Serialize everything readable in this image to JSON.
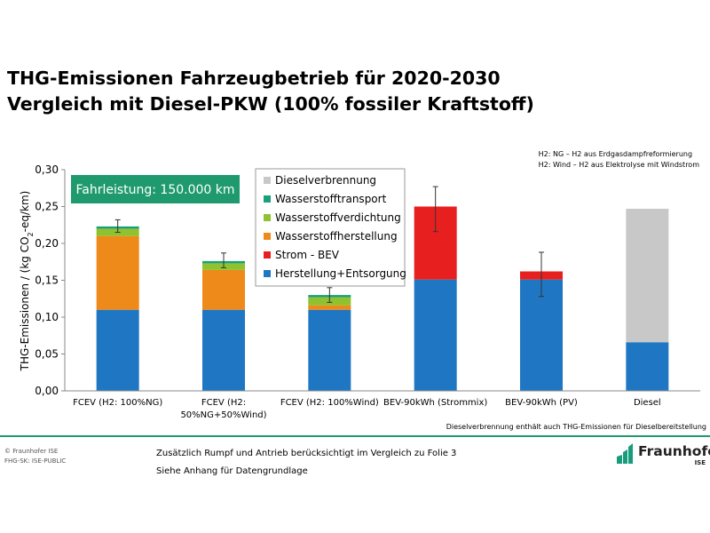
{
  "title": {
    "line1": "THG-Emissionen Fahrzeugbetrieb für 2020-2030",
    "line2": "Vergleich mit Diesel-PKW (100% fossiler Kraftstoff)"
  },
  "notes": {
    "ng": "H2: NG – H2 aus Erdgasdampfreformierung",
    "wind": "H2: Wind – H2 aus Elektrolyse mit Windstrom",
    "diesel": "Dieselverbrennung enthält auch THG-Emissionen für Dieselbereitstellung"
  },
  "badge": "Fahrleistung: 150.000 km",
  "footer": {
    "copyright": "© Fraunhofer ISE",
    "classification": "FHG-SK: ISE-PUBLIC",
    "line1": "Zusätzlich Rumpf und Antrieb berücksichtigt im Vergleich zu Folie 3",
    "line2": "Siehe Anhang für Datengrundlage",
    "logo_name": "Fraunhofer",
    "logo_sub": "ISE"
  },
  "colors": {
    "herstellung": "#1f77c4",
    "strom": "#e81f1f",
    "h2herstellung": "#ee8a1a",
    "h2verdichtung": "#8fc22e",
    "h2transport": "#17a07a",
    "diesel": "#c8c8c8",
    "badge": "#1f9a6e"
  },
  "chart_data": {
    "type": "bar",
    "stacked": true,
    "ylabel": "THG-Emissionen / (kg CO2-eq/km)",
    "ylim": [
      0,
      0.3
    ],
    "yticks": [
      "0,00",
      "0,05",
      "0,10",
      "0,15",
      "0,20",
      "0,25",
      "0,30"
    ],
    "categories": [
      [
        "FCEV (H2: 100%NG)"
      ],
      [
        "FCEV (H2:",
        "50%NG+50%Wind)"
      ],
      [
        "FCEV (H2: 100%Wind)"
      ],
      [
        "BEV-90kWh (Strommix)"
      ],
      [
        "BEV-90kWh (PV)"
      ],
      [
        "Diesel"
      ]
    ],
    "series": [
      {
        "name": "Herstellung+Entsorgung",
        "color": "#1f77c4",
        "values": [
          0.11,
          0.11,
          0.11,
          0.151,
          0.151,
          0.066
        ]
      },
      {
        "name": "Strom - BEV",
        "color": "#e81f1f",
        "values": [
          0,
          0,
          0,
          0.099,
          0.011,
          0
        ]
      },
      {
        "name": "Wasserstoffherstellung",
        "color": "#ee8a1a",
        "values": [
          0.1,
          0.054,
          0.006,
          0,
          0,
          0
        ]
      },
      {
        "name": "Wasserstoffverdichtung",
        "color": "#8fc22e",
        "values": [
          0.01,
          0.009,
          0.011,
          0,
          0,
          0
        ]
      },
      {
        "name": "Wasserstofftransport",
        "color": "#17a07a",
        "values": [
          0.003,
          0.003,
          0.003,
          0,
          0,
          0
        ]
      },
      {
        "name": "Dieselverbrennung",
        "color": "#c8c8c8",
        "values": [
          0,
          0,
          0,
          0,
          0,
          0.181
        ]
      }
    ],
    "legend_order": [
      "Dieselverbrennung",
      "Wasserstofftransport",
      "Wasserstoffverdichtung",
      "Wasserstoffherstellung",
      "Strom - BEV",
      "Herstellung+Entsorgung"
    ],
    "legend_placement": "top-center",
    "error_bars": [
      {
        "low": 0.215,
        "high": 0.232
      },
      {
        "low": 0.167,
        "high": 0.187
      },
      {
        "low": 0.12,
        "high": 0.14
      },
      {
        "low": 0.216,
        "high": 0.277
      },
      {
        "low": 0.128,
        "high": 0.188
      },
      null
    ],
    "grid": false
  }
}
